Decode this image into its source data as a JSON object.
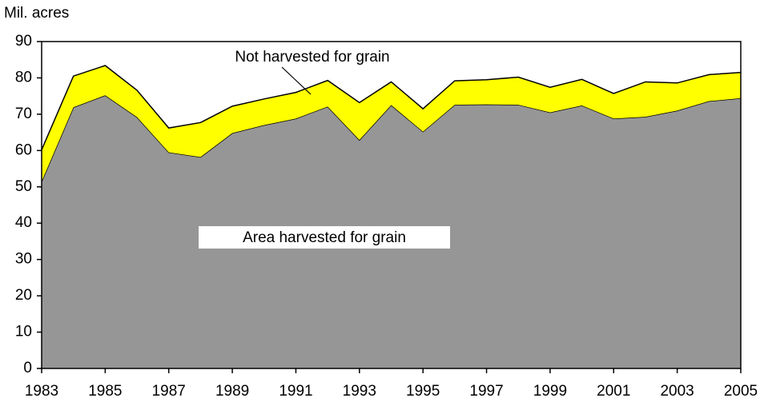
{
  "chart_data": {
    "type": "stacked-area",
    "y_axis_label": "Mil. acres",
    "x": [
      1983,
      1984,
      1985,
      1986,
      1987,
      1988,
      1989,
      1990,
      1991,
      1992,
      1993,
      1994,
      1995,
      1996,
      1997,
      1998,
      1999,
      2000,
      2001,
      2002,
      2003,
      2004,
      2005
    ],
    "series": [
      {
        "name": "Area harvested for grain",
        "color": "#969696",
        "values": [
          51.5,
          71.9,
          75.2,
          69.2,
          59.5,
          58.2,
          64.8,
          67.0,
          68.8,
          72.1,
          62.9,
          72.5,
          65.2,
          72.6,
          72.7,
          72.6,
          70.5,
          72.4,
          68.8,
          69.3,
          71.0,
          73.6,
          74.4
        ]
      },
      {
        "name": "Not harvested for grain",
        "color": "#ffff00",
        "values": [
          8.7,
          8.6,
          8.2,
          7.4,
          6.7,
          9.5,
          7.4,
          7.2,
          7.2,
          7.2,
          10.3,
          6.4,
          6.3,
          6.6,
          6.8,
          7.6,
          6.9,
          7.2,
          6.9,
          9.6,
          7.6,
          7.3,
          7.1
        ]
      }
    ],
    "xlim": [
      1983,
      2005
    ],
    "xticks": [
      1983,
      1985,
      1987,
      1989,
      1991,
      1993,
      1995,
      1997,
      1999,
      2001,
      2003,
      2005
    ],
    "ylim": [
      0,
      90
    ],
    "yticks": [
      0,
      10,
      20,
      30,
      40,
      50,
      60,
      70,
      80,
      90
    ],
    "grid": false
  }
}
